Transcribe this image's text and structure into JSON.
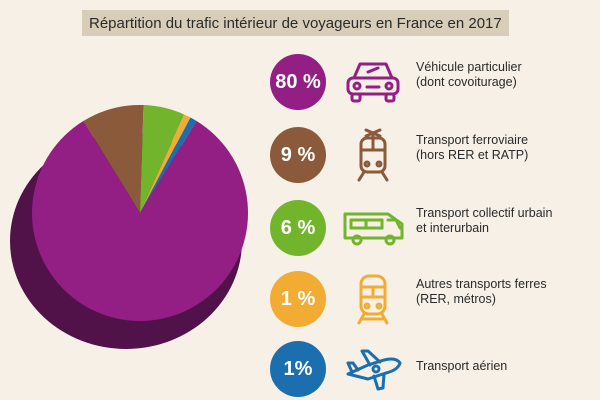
{
  "title": "Répartition du trafic intérieur de voyageurs en France en 2017",
  "colors": {
    "background": "#f6f0e6",
    "voiture": "#931f84",
    "ferroviaire": "#8a5a3a",
    "collectif": "#72b52c",
    "autres": "#f2ac33",
    "aerien": "#1b6fae"
  },
  "chart_data": {
    "type": "pie",
    "title": "Répartition du trafic intérieur de voyageurs en France en 2017",
    "unit": "%",
    "slices": [
      {
        "label": "Véhicule particulier (dont covoiturage)",
        "value": 80,
        "display": "80 %",
        "color": "#931f84",
        "icon": "car-icon"
      },
      {
        "label": "Transport ferroviaire (hors RER et RATP)",
        "value": 9,
        "display": "9 %",
        "color": "#8a5a3a",
        "icon": "train-icon"
      },
      {
        "label": "Transport collectif urbain et interurbain",
        "value": 6,
        "display": "6 %",
        "color": "#72b52c",
        "icon": "bus-icon"
      },
      {
        "label": "Autres transports ferres (RER, métros)",
        "value": 1,
        "display": "1 %",
        "color": "#f2ac33",
        "icon": "metro-icon"
      },
      {
        "label": "Transport aérien",
        "value": 1,
        "display": "1%",
        "color": "#1b6fae",
        "icon": "plane-icon"
      }
    ]
  },
  "legend": [
    {
      "display": "80 %",
      "line1": "Véhicule particulier",
      "line2": "(dont covoiturage)"
    },
    {
      "display": "9 %",
      "line1": "Transport ferroviaire",
      "line2": "(hors RER et RATP)"
    },
    {
      "display": "6 %",
      "line1": "Transport collectif urbain",
      "line2": "et interurbain"
    },
    {
      "display": "1 %",
      "line1": "Autres transports ferres",
      "line2": "(RER, métros)"
    },
    {
      "display": "1%",
      "line1": "Transport aérien",
      "line2": ""
    }
  ]
}
